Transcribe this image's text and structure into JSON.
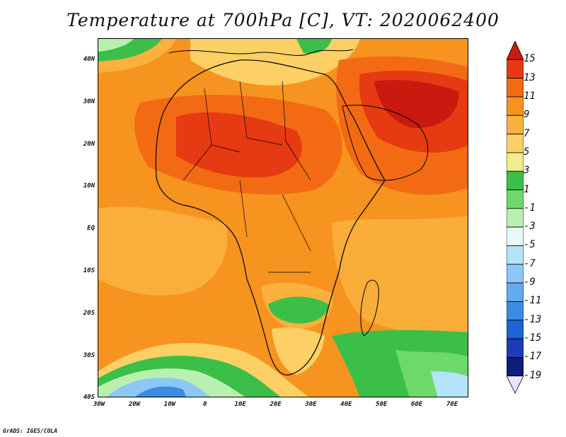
{
  "title": "Temperature at 700hPa [C], VT: 2020062400",
  "credit": "GrADS: IGES/COLA",
  "lat_labels": [
    "40N",
    "30N",
    "20N",
    "10N",
    "EQ",
    "10S",
    "20S",
    "30S",
    "40S"
  ],
  "lon_labels": [
    "30W",
    "20W",
    "10W",
    "0",
    "10E",
    "20E",
    "30E",
    "40E",
    "50E",
    "60E",
    "70E"
  ],
  "colorbar": {
    "labels": [
      "15",
      "13",
      "11",
      "9",
      "7",
      "5",
      "3",
      "1",
      "-1",
      "-3",
      "-5",
      "-7",
      "-9",
      "-11",
      "-13",
      "-15",
      "-17",
      "-19"
    ],
    "colors": [
      "#c81a0f",
      "#e63a12",
      "#f26b14",
      "#f7931f",
      "#fab13e",
      "#fcd064",
      "#f2ec8c",
      "#3cbf48",
      "#6dd96a",
      "#b9f0b0",
      "#e6fafa",
      "#b4e4fa",
      "#8cc8f5",
      "#64aaf0",
      "#3c8ce6",
      "#1e64d2",
      "#1e3cb4",
      "#0f1c78"
    ]
  },
  "map": {
    "region": "Africa",
    "variable": "Temperature",
    "level": "700hPa",
    "units": "C",
    "valid_time": "2020062400",
    "lon_range": [
      -30,
      75
    ],
    "lat_range": [
      -40,
      45
    ]
  }
}
